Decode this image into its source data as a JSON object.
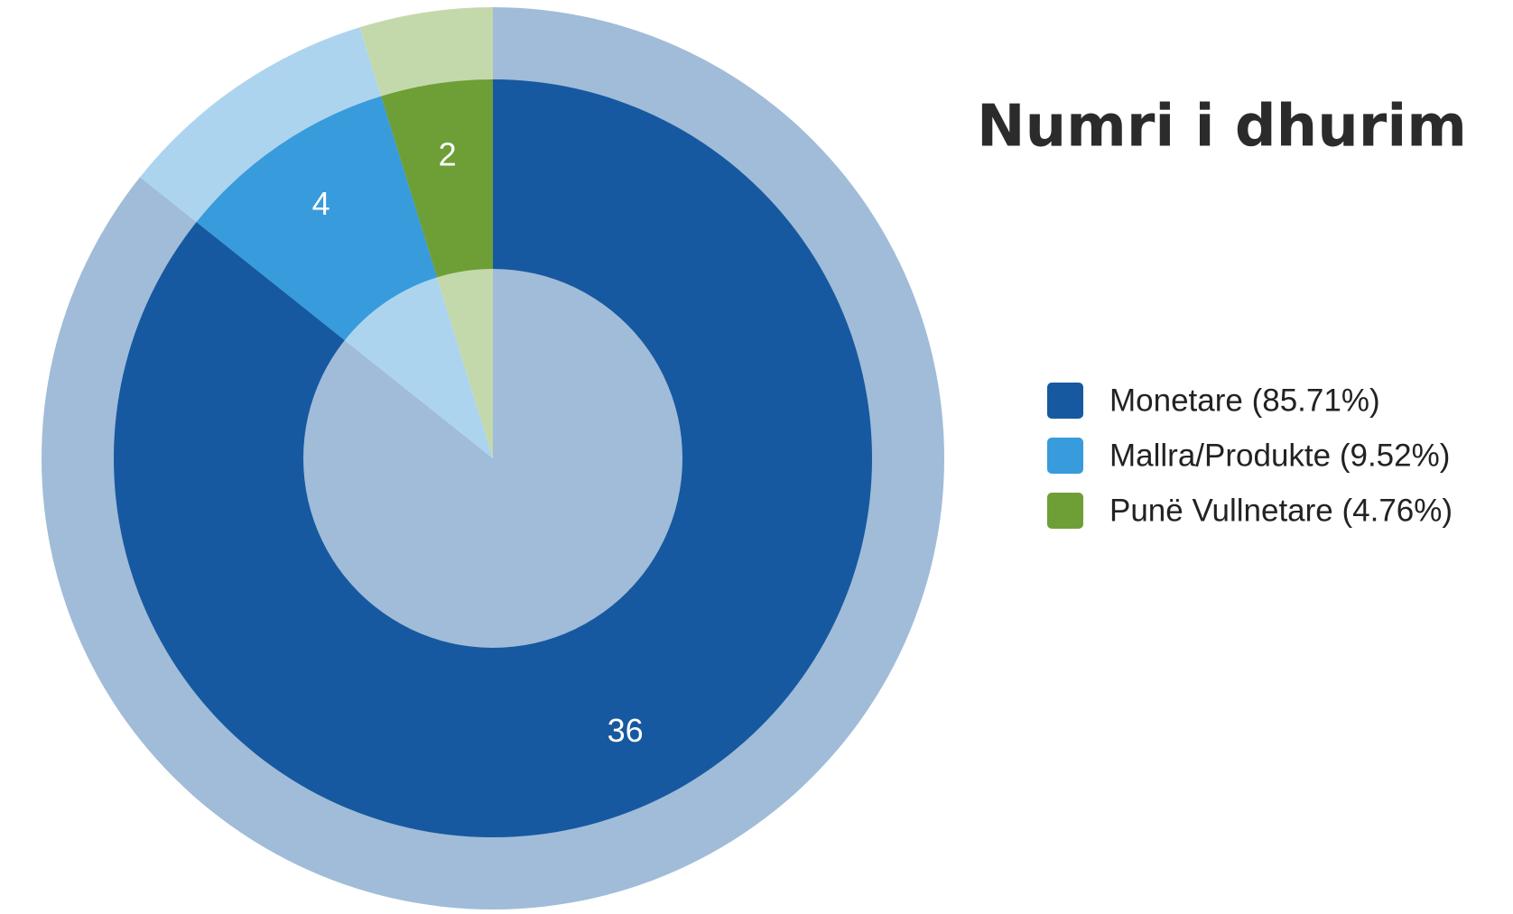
{
  "chart_data": {
    "type": "donut",
    "title": "Numri i dhurim",
    "categories": [
      "Monetare (85.71%)",
      "Mallra/Produkte (9.52%)",
      "Punë Vullnetare (4.76%)"
    ],
    "values": [
      36,
      4,
      2
    ],
    "colors": [
      "#1659a0",
      "#389bdc",
      "#6e9f37"
    ],
    "pale_colors": [
      "#a0bcd8",
      "#acd4ee",
      "#c4d9ab"
    ],
    "legend": "right"
  }
}
